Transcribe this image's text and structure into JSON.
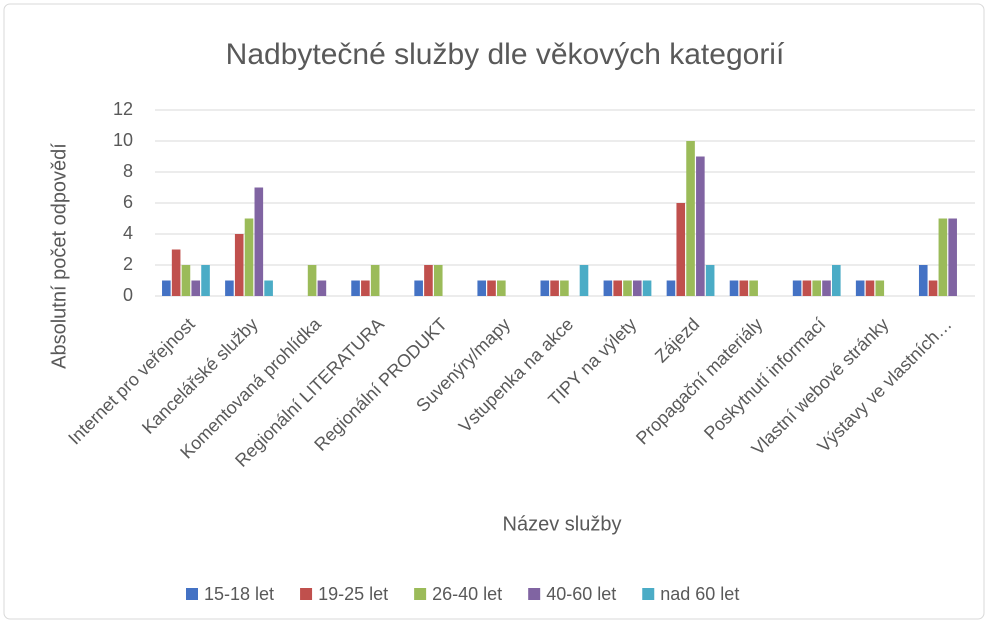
{
  "chart_data": {
    "type": "bar",
    "title": "Nadbytečné služby dle věkových kategorií",
    "x_label": "Název služby",
    "y_label": "Absolutní počet odpovědí",
    "categories": [
      "Internet pro veřejnost",
      "Kancelářské služby",
      "Komentovaná prohlídka",
      "Regionální LITERATURA",
      "Regionální PRODUKT",
      "Suvenýry/mapy",
      "Vstupenka na akce",
      "TIPY na výlety",
      "Zájezd",
      "Propagační materiály",
      "Poskytnutí informací",
      "Vlastní webové stránky",
      "Výstavy ve vlastních…"
    ],
    "series": [
      {
        "name": "15-18 let",
        "color": "#4472c4",
        "values": [
          1,
          1,
          0,
          1,
          1,
          1,
          1,
          1,
          1,
          1,
          1,
          1,
          2
        ]
      },
      {
        "name": "19-25 let",
        "color": "#c0504d",
        "values": [
          3,
          4,
          0,
          1,
          2,
          1,
          1,
          1,
          6,
          1,
          1,
          1,
          1
        ]
      },
      {
        "name": "26-40 let",
        "color": "#9bbb59",
        "values": [
          2,
          5,
          2,
          2,
          2,
          1,
          1,
          1,
          10,
          1,
          1,
          1,
          5
        ]
      },
      {
        "name": "40-60 let",
        "color": "#8064a2",
        "values": [
          1,
          7,
          1,
          0,
          0,
          0,
          0,
          1,
          9,
          0,
          1,
          0,
          5
        ]
      },
      {
        "name": "nad 60 let",
        "color": "#4bacc6",
        "values": [
          2,
          1,
          0,
          0,
          0,
          0,
          2,
          1,
          2,
          0,
          2,
          0,
          0
        ]
      }
    ],
    "ylim": [
      0,
      12
    ],
    "yticks": [
      0,
      2,
      4,
      6,
      8,
      10,
      12
    ],
    "grid": true,
    "legend": "bottom"
  }
}
